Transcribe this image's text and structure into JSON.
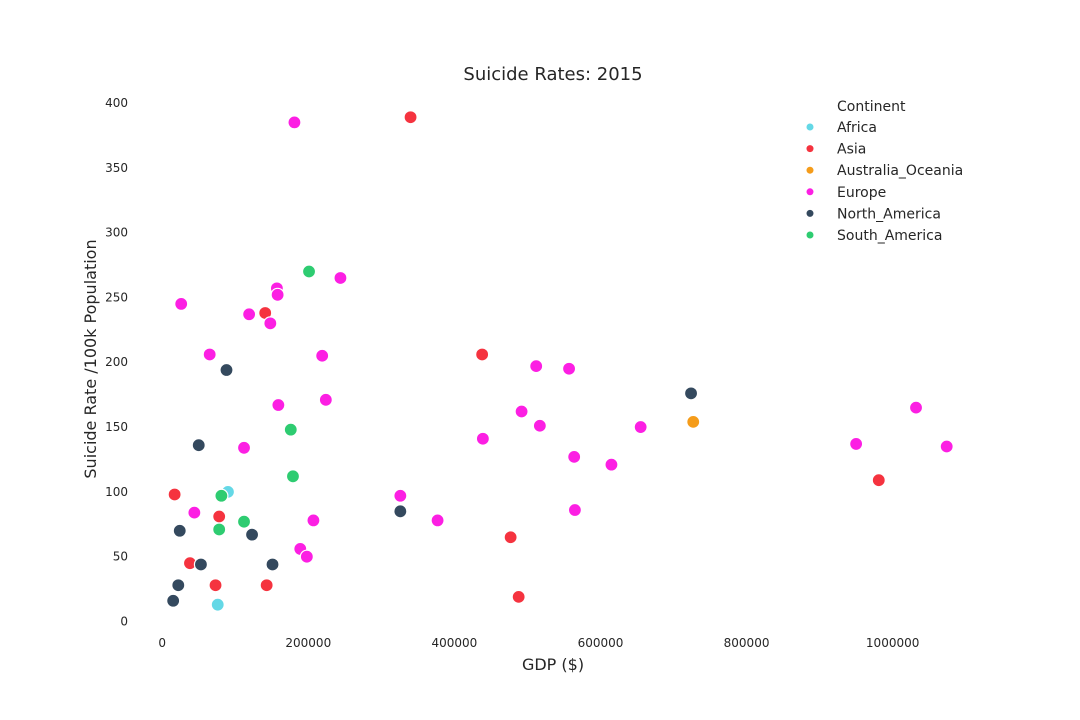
{
  "chart_data": {
    "type": "scatter",
    "title": "Suicide Rates: 2015",
    "xlabel": "GDP ($)",
    "ylabel": "Suicide Rate /100k Population",
    "xlim": [
      -40000,
      1110000
    ],
    "ylim": [
      -5,
      410
    ],
    "x_ticks": [
      0,
      200000,
      400000,
      600000,
      800000,
      1000000
    ],
    "x_tick_labels": [
      "0",
      "200000",
      "400000",
      "600000",
      "800000",
      "1000000"
    ],
    "y_ticks": [
      0,
      50,
      100,
      150,
      200,
      250,
      300,
      350,
      400
    ],
    "y_tick_labels": [
      "0",
      "50",
      "100",
      "150",
      "200",
      "250",
      "300",
      "350",
      "400"
    ],
    "grid": false,
    "legend": {
      "title": "Continent",
      "placement": "top-right"
    },
    "series": [
      {
        "name": "Africa",
        "color": "#64d8e6",
        "points": [
          [
            90000,
            100
          ],
          [
            76000,
            13
          ]
        ]
      },
      {
        "name": "Asia",
        "color": "#f5333f",
        "points": [
          [
            340000,
            389
          ],
          [
            141000,
            238
          ],
          [
            17000,
            98
          ],
          [
            78000,
            81
          ],
          [
            38000,
            45
          ],
          [
            73000,
            28
          ],
          [
            143000,
            28
          ],
          [
            438000,
            206
          ],
          [
            477000,
            65
          ],
          [
            488000,
            19
          ],
          [
            981000,
            109
          ]
        ]
      },
      {
        "name": "Australia_Oceania",
        "color": "#f59c1a",
        "points": [
          [
            727000,
            154
          ]
        ]
      },
      {
        "name": "Europe",
        "color": "#fc1fe3",
        "points": [
          [
            181000,
            385
          ],
          [
            26000,
            245
          ],
          [
            244000,
            265
          ],
          [
            157000,
            257
          ],
          [
            158000,
            252
          ],
          [
            119000,
            237
          ],
          [
            148000,
            230
          ],
          [
            65000,
            206
          ],
          [
            219000,
            205
          ],
          [
            159000,
            167
          ],
          [
            224000,
            171
          ],
          [
            112000,
            134
          ],
          [
            44000,
            84
          ],
          [
            207000,
            78
          ],
          [
            189000,
            56
          ],
          [
            198000,
            50
          ],
          [
            326000,
            97
          ],
          [
            377000,
            78
          ],
          [
            439000,
            141
          ],
          [
            492000,
            162
          ],
          [
            512000,
            197
          ],
          [
            517000,
            151
          ],
          [
            557000,
            195
          ],
          [
            564000,
            127
          ],
          [
            565000,
            86
          ],
          [
            615000,
            121
          ],
          [
            655000,
            150
          ],
          [
            950000,
            137
          ],
          [
            1032000,
            165
          ],
          [
            1074000,
            135
          ]
        ]
      },
      {
        "name": "North_America",
        "color": "#34495e",
        "points": [
          [
            88000,
            194
          ],
          [
            50000,
            136
          ],
          [
            24000,
            70
          ],
          [
            53000,
            44
          ],
          [
            22000,
            28
          ],
          [
            15000,
            16
          ],
          [
            123000,
            67
          ],
          [
            151000,
            44
          ],
          [
            326000,
            85
          ],
          [
            724000,
            176
          ]
        ]
      },
      {
        "name": "South_America",
        "color": "#2ecc71",
        "points": [
          [
            201000,
            270
          ],
          [
            176000,
            148
          ],
          [
            179000,
            112
          ],
          [
            81000,
            97
          ],
          [
            112000,
            77
          ],
          [
            78000,
            71
          ]
        ]
      }
    ]
  }
}
